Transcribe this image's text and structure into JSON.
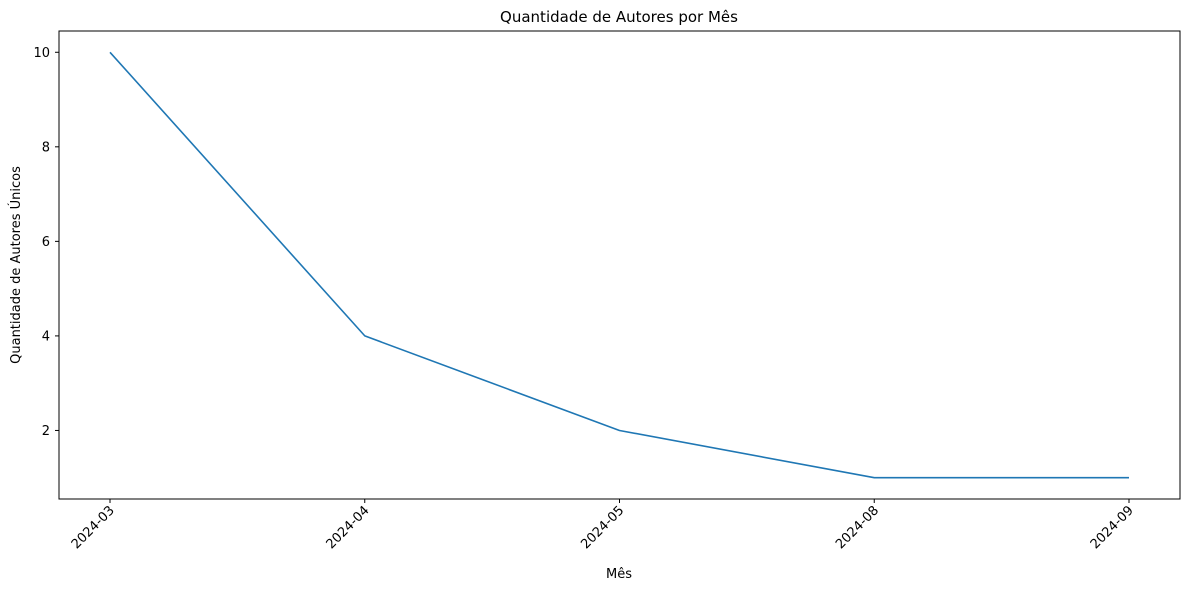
{
  "chart_data": {
    "type": "line",
    "title": "Quantidade de Autores por Mês",
    "xlabel": "Mês",
    "ylabel": "Quantidade de Autores Únicos",
    "categories": [
      "2024-03",
      "2024-04",
      "2024-05",
      "2024-08",
      "2024-09"
    ],
    "series": [
      {
        "values": [
          10,
          4,
          2,
          1,
          1
        ],
        "color": "#1f77b4"
      }
    ],
    "yticks": [
      2,
      4,
      6,
      8,
      10
    ],
    "ylim": [
      0.55,
      10.45
    ],
    "grid": false,
    "legend": "none"
  }
}
